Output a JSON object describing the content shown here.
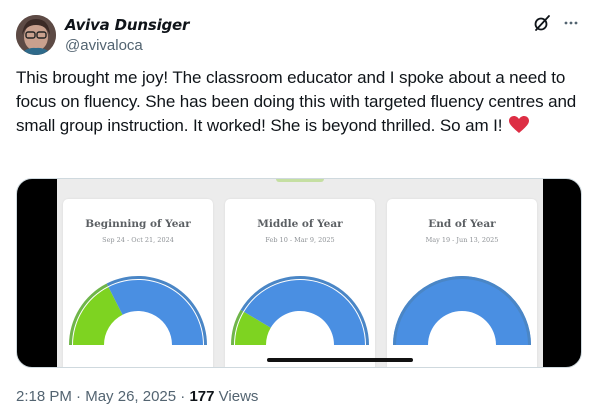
{
  "author": {
    "name": "Aviva Dunsiger",
    "handle": "@avivaloca"
  },
  "icons": {
    "grok": "grok-icon",
    "more": "more-icon",
    "heart": "heart-icon"
  },
  "tweet": {
    "text": "This brought me joy! The classroom educator and I spoke about a need to focus on fluency. She has been doing this with targeted fluency centres and small group instruction. It worked! She is beyond thrilled. So am I!",
    "emoji": "heart"
  },
  "media": {
    "cards": [
      {
        "title": "Beginning of Year",
        "dates": "Sep 24 - Oct 21, 2024",
        "green_fraction": 0.35,
        "blue_fraction": 0.65
      },
      {
        "title": "Middle of Year",
        "dates": "Feb 10 - Mar 9, 2025",
        "green_fraction": 0.17,
        "blue_fraction": 0.83
      },
      {
        "title": "End of Year",
        "dates": "May 19 - Jun 13, 2025",
        "green_fraction": 0.0,
        "blue_fraction": 1.0
      }
    ],
    "colors": {
      "green": "#7ed321",
      "blue": "#4a8fe2",
      "outer_green": "#6fb54a",
      "outer_blue": "#4a86c6"
    }
  },
  "meta": {
    "time": "2:18 PM",
    "separator": "·",
    "date": "May 26, 2025",
    "views_count": "177",
    "views_label": "Views"
  }
}
